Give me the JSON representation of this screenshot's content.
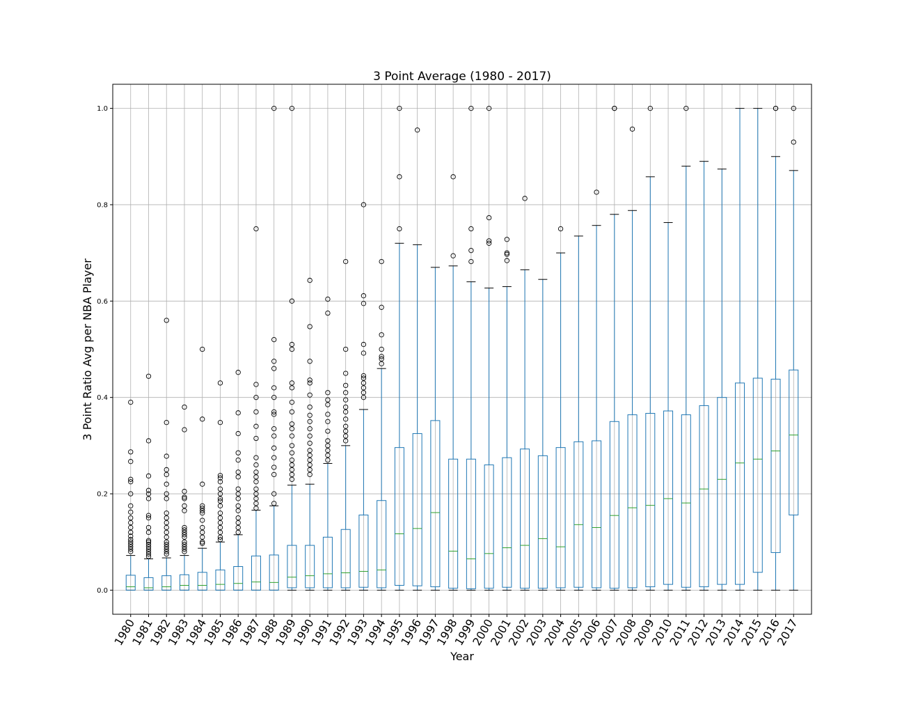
{
  "chart_data": {
    "type": "box",
    "title": "3 Point Average (1980 - 2017)",
    "xlabel": "Year",
    "ylabel": "3 Point Ratio Avg per NBA Player",
    "ylim": [
      -0.05,
      1.05
    ],
    "yticks": [
      "0.0",
      "0.2",
      "0.4",
      "0.6",
      "0.8",
      "1.0"
    ],
    "grid": true,
    "colors": {
      "box": "#1f77b4",
      "median": "#2ca02c",
      "whisker": "#1f77b4",
      "cap": "#000000",
      "flier": "#000000",
      "grid": "#b0b0b0"
    },
    "categories": [
      "1980",
      "1981",
      "1982",
      "1983",
      "1984",
      "1985",
      "1986",
      "1987",
      "1988",
      "1989",
      "1990",
      "1991",
      "1992",
      "1993",
      "1994",
      "1995",
      "1996",
      "1997",
      "1998",
      "1999",
      "2000",
      "2001",
      "2002",
      "2003",
      "2004",
      "2005",
      "2006",
      "2007",
      "2008",
      "2009",
      "2010",
      "2011",
      "2012",
      "2013",
      "2014",
      "2015",
      "2016",
      "2017"
    ],
    "boxes": [
      {
        "q1": 0.0,
        "median": 0.007,
        "q3": 0.031,
        "whislo": 0.0,
        "whishi": 0.072,
        "fliers": [
          0.39,
          0.287,
          0.267,
          0.23,
          0.225,
          0.2,
          0.175,
          0.162,
          0.15,
          0.14,
          0.13,
          0.12,
          0.112,
          0.105,
          0.1,
          0.095,
          0.09,
          0.085,
          0.08
        ]
      },
      {
        "q1": 0.0,
        "median": 0.005,
        "q3": 0.026,
        "whislo": 0.0,
        "whishi": 0.065,
        "fliers": [
          0.444,
          0.31,
          0.237,
          0.207,
          0.2,
          0.19,
          0.155,
          0.15,
          0.13,
          0.12,
          0.103,
          0.1,
          0.095,
          0.09,
          0.085,
          0.08,
          0.075,
          0.07
        ]
      },
      {
        "q1": 0.0,
        "median": 0.007,
        "q3": 0.03,
        "whislo": 0.0,
        "whishi": 0.067,
        "fliers": [
          0.56,
          0.348,
          0.278,
          0.25,
          0.24,
          0.22,
          0.2,
          0.19,
          0.16,
          0.15,
          0.14,
          0.13,
          0.12,
          0.11,
          0.1,
          0.095,
          0.09,
          0.085,
          0.08,
          0.075
        ]
      },
      {
        "q1": 0.0,
        "median": 0.01,
        "q3": 0.032,
        "whislo": 0.0,
        "whishi": 0.072,
        "fliers": [
          0.38,
          0.333,
          0.205,
          0.193,
          0.19,
          0.175,
          0.165,
          0.13,
          0.125,
          0.12,
          0.115,
          0.11,
          0.1,
          0.095,
          0.09,
          0.085,
          0.08
        ]
      },
      {
        "q1": 0.0,
        "median": 0.01,
        "q3": 0.037,
        "whislo": 0.0,
        "whishi": 0.087,
        "fliers": [
          0.5,
          0.355,
          0.22,
          0.175,
          0.17,
          0.165,
          0.16,
          0.145,
          0.13,
          0.12,
          0.11,
          0.1,
          0.097
        ]
      },
      {
        "q1": 0.0,
        "median": 0.012,
        "q3": 0.042,
        "whislo": 0.0,
        "whishi": 0.1,
        "fliers": [
          0.43,
          0.348,
          0.238,
          0.233,
          0.225,
          0.21,
          0.2,
          0.19,
          0.185,
          0.175,
          0.16,
          0.15,
          0.14,
          0.13,
          0.12,
          0.11,
          0.105
        ]
      },
      {
        "q1": 0.0,
        "median": 0.014,
        "q3": 0.049,
        "whislo": 0.0,
        "whishi": 0.115,
        "fliers": [
          0.452,
          0.368,
          0.325,
          0.285,
          0.27,
          0.245,
          0.235,
          0.21,
          0.2,
          0.19,
          0.175,
          0.165,
          0.15,
          0.14,
          0.13,
          0.12
        ]
      },
      {
        "q1": 0.0,
        "median": 0.017,
        "q3": 0.071,
        "whislo": 0.0,
        "whishi": 0.166,
        "fliers": [
          0.75,
          0.427,
          0.4,
          0.37,
          0.34,
          0.315,
          0.275,
          0.26,
          0.245,
          0.235,
          0.225,
          0.21,
          0.2,
          0.19,
          0.18,
          0.17
        ]
      },
      {
        "q1": 0.0,
        "median": 0.016,
        "q3": 0.073,
        "whislo": 0.0,
        "whishi": 0.175,
        "fliers": [
          1.0,
          0.52,
          0.475,
          0.46,
          0.42,
          0.4,
          0.37,
          0.365,
          0.335,
          0.32,
          0.295,
          0.275,
          0.255,
          0.24,
          0.2,
          0.18
        ]
      },
      {
        "q1": 0.005,
        "median": 0.027,
        "q3": 0.093,
        "whislo": 0.0,
        "whishi": 0.218,
        "fliers": [
          1.0,
          0.6,
          0.51,
          0.5,
          0.43,
          0.42,
          0.39,
          0.37,
          0.345,
          0.335,
          0.32,
          0.3,
          0.285,
          0.27,
          0.26,
          0.25,
          0.24,
          0.23
        ]
      },
      {
        "q1": 0.005,
        "median": 0.03,
        "q3": 0.093,
        "whislo": 0.0,
        "whishi": 0.22,
        "fliers": [
          0.643,
          0.547,
          0.475,
          0.436,
          0.43,
          0.405,
          0.38,
          0.363,
          0.35,
          0.335,
          0.32,
          0.305,
          0.29,
          0.28,
          0.27,
          0.26,
          0.25,
          0.24
        ]
      },
      {
        "q1": 0.005,
        "median": 0.034,
        "q3": 0.11,
        "whislo": 0.0,
        "whishi": 0.263,
        "fliers": [
          0.604,
          0.575,
          0.41,
          0.395,
          0.385,
          0.365,
          0.35,
          0.33,
          0.31,
          0.3,
          0.29,
          0.28,
          0.27
        ]
      },
      {
        "q1": 0.005,
        "median": 0.036,
        "q3": 0.126,
        "whislo": 0.0,
        "whishi": 0.3,
        "fliers": [
          0.682,
          0.5,
          0.45,
          0.425,
          0.41,
          0.395,
          0.38,
          0.37,
          0.355,
          0.34,
          0.33,
          0.32,
          0.31
        ]
      },
      {
        "q1": 0.006,
        "median": 0.039,
        "q3": 0.156,
        "whislo": 0.0,
        "whishi": 0.375,
        "fliers": [
          0.8,
          0.611,
          0.595,
          0.51,
          0.492,
          0.445,
          0.44,
          0.43,
          0.42,
          0.41,
          0.4
        ]
      },
      {
        "q1": 0.005,
        "median": 0.042,
        "q3": 0.186,
        "whislo": 0.0,
        "whishi": 0.46,
        "fliers": [
          0.682,
          0.587,
          0.53,
          0.5,
          0.485,
          0.48,
          0.47
        ]
      },
      {
        "q1": 0.01,
        "median": 0.117,
        "q3": 0.296,
        "whislo": 0.0,
        "whishi": 0.72,
        "fliers": [
          1.0,
          0.858,
          0.75
        ]
      },
      {
        "q1": 0.009,
        "median": 0.128,
        "q3": 0.325,
        "whislo": 0.0,
        "whishi": 0.717,
        "fliers": [
          0.955
        ]
      },
      {
        "q1": 0.007,
        "median": 0.161,
        "q3": 0.352,
        "whislo": 0.0,
        "whishi": 0.67,
        "fliers": []
      },
      {
        "q1": 0.004,
        "median": 0.081,
        "q3": 0.272,
        "whislo": 0.0,
        "whishi": 0.673,
        "fliers": [
          0.858,
          0.694
        ]
      },
      {
        "q1": 0.003,
        "median": 0.065,
        "q3": 0.272,
        "whislo": 0.0,
        "whishi": 0.64,
        "fliers": [
          1.0,
          0.75,
          0.705,
          0.682
        ]
      },
      {
        "q1": 0.004,
        "median": 0.076,
        "q3": 0.26,
        "whislo": 0.0,
        "whishi": 0.627,
        "fliers": [
          1.0,
          0.773,
          0.725,
          0.72
        ]
      },
      {
        "q1": 0.006,
        "median": 0.088,
        "q3": 0.275,
        "whislo": 0.0,
        "whishi": 0.63,
        "fliers": [
          0.728,
          0.7,
          0.697,
          0.684
        ]
      },
      {
        "q1": 0.004,
        "median": 0.093,
        "q3": 0.293,
        "whislo": 0.0,
        "whishi": 0.665,
        "fliers": [
          0.813
        ]
      },
      {
        "q1": 0.004,
        "median": 0.107,
        "q3": 0.279,
        "whislo": 0.0,
        "whishi": 0.645,
        "fliers": []
      },
      {
        "q1": 0.005,
        "median": 0.09,
        "q3": 0.296,
        "whislo": 0.0,
        "whishi": 0.7,
        "fliers": [
          0.75
        ]
      },
      {
        "q1": 0.006,
        "median": 0.136,
        "q3": 0.308,
        "whislo": 0.0,
        "whishi": 0.735,
        "fliers": []
      },
      {
        "q1": 0.005,
        "median": 0.13,
        "q3": 0.31,
        "whislo": 0.0,
        "whishi": 0.757,
        "fliers": [
          0.826
        ]
      },
      {
        "q1": 0.004,
        "median": 0.155,
        "q3": 0.35,
        "whislo": 0.0,
        "whishi": 0.78,
        "fliers": [
          1.0,
          1.0
        ]
      },
      {
        "q1": 0.005,
        "median": 0.171,
        "q3": 0.364,
        "whislo": 0.0,
        "whishi": 0.788,
        "fliers": [
          0.957
        ]
      },
      {
        "q1": 0.007,
        "median": 0.176,
        "q3": 0.367,
        "whislo": 0.0,
        "whishi": 0.858,
        "fliers": [
          1.0
        ]
      },
      {
        "q1": 0.012,
        "median": 0.19,
        "q3": 0.372,
        "whislo": 0.0,
        "whishi": 0.763,
        "fliers": []
      },
      {
        "q1": 0.006,
        "median": 0.181,
        "q3": 0.364,
        "whislo": 0.0,
        "whishi": 0.88,
        "fliers": [
          1.0
        ]
      },
      {
        "q1": 0.007,
        "median": 0.21,
        "q3": 0.383,
        "whislo": 0.0,
        "whishi": 0.89,
        "fliers": []
      },
      {
        "q1": 0.012,
        "median": 0.23,
        "q3": 0.4,
        "whislo": 0.0,
        "whishi": 0.874,
        "fliers": []
      },
      {
        "q1": 0.012,
        "median": 0.264,
        "q3": 0.43,
        "whislo": 0.0,
        "whishi": 1.0,
        "fliers": []
      },
      {
        "q1": 0.037,
        "median": 0.272,
        "q3": 0.44,
        "whislo": 0.0,
        "whishi": 1.0,
        "fliers": []
      },
      {
        "q1": 0.078,
        "median": 0.289,
        "q3": 0.438,
        "whislo": 0.0,
        "whishi": 0.9,
        "fliers": [
          1.0,
          1.0
        ]
      },
      {
        "q1": 0.156,
        "median": 0.322,
        "q3": 0.457,
        "whislo": 0.0,
        "whishi": 0.871,
        "fliers": [
          1.0,
          0.93
        ]
      }
    ]
  }
}
